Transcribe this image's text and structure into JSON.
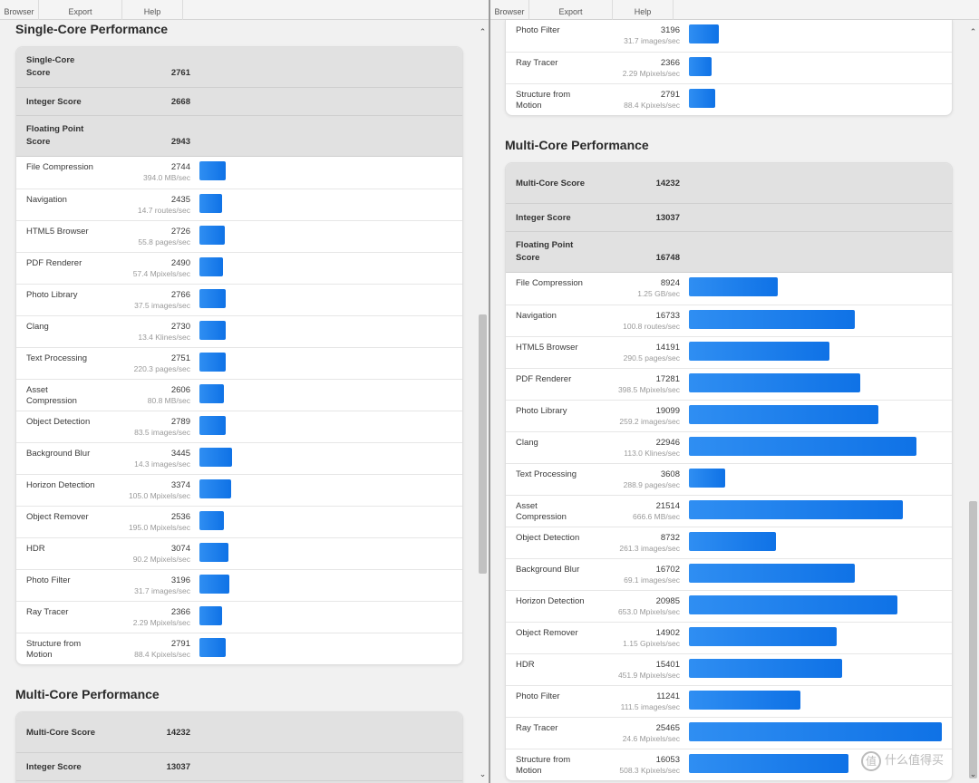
{
  "menu": [
    "Browser",
    "Export",
    "Help"
  ],
  "sections": {
    "single": "Single-Core Performance",
    "multi": "Multi-Core Performance"
  },
  "single_core": {
    "summary": [
      {
        "label": "Single-Core\nScore",
        "score": "2761"
      },
      {
        "label": "Integer Score",
        "score": "2668"
      },
      {
        "label": "Floating Point\nScore",
        "score": "2943"
      }
    ],
    "workloads": [
      {
        "name": "File Compression",
        "score": "2744",
        "unit": "394.0 MB/sec"
      },
      {
        "name": "Navigation",
        "score": "2435",
        "unit": "14.7 routes/sec"
      },
      {
        "name": "HTML5 Browser",
        "score": "2726",
        "unit": "55.8 pages/sec"
      },
      {
        "name": "PDF Renderer",
        "score": "2490",
        "unit": "57.4 Mpixels/sec"
      },
      {
        "name": "Photo Library",
        "score": "2766",
        "unit": "37.5 images/sec"
      },
      {
        "name": "Clang",
        "score": "2730",
        "unit": "13.4 Klines/sec"
      },
      {
        "name": "Text Processing",
        "score": "2751",
        "unit": "220.3 pages/sec"
      },
      {
        "name": "Asset\nCompression",
        "score": "2606",
        "unit": "80.8 MB/sec"
      },
      {
        "name": "Object Detection",
        "score": "2789",
        "unit": "83.5 images/sec"
      },
      {
        "name": "Background Blur",
        "score": "3445",
        "unit": "14.3 images/sec"
      },
      {
        "name": "Horizon Detection",
        "score": "3374",
        "unit": "105.0 Mpixels/sec"
      },
      {
        "name": "Object Remover",
        "score": "2536",
        "unit": "195.0 Mpixels/sec"
      },
      {
        "name": "HDR",
        "score": "3074",
        "unit": "90.2 Mpixels/sec"
      },
      {
        "name": "Photo Filter",
        "score": "3196",
        "unit": "31.7 images/sec"
      },
      {
        "name": "Ray Tracer",
        "score": "2366",
        "unit": "2.29 Mpixels/sec"
      },
      {
        "name": "Structure from\nMotion",
        "score": "2791",
        "unit": "88.4 Kpixels/sec"
      }
    ]
  },
  "multi_core": {
    "summary": [
      {
        "label": "Multi-Core Score",
        "score": "14232"
      },
      {
        "label": "Integer Score",
        "score": "13037"
      },
      {
        "label": "Floating Point\nScore",
        "score": "16748"
      }
    ],
    "workloads": [
      {
        "name": "File Compression",
        "score": "8924",
        "unit": "1.25 GB/sec"
      },
      {
        "name": "Navigation",
        "score": "16733",
        "unit": "100.8 routes/sec"
      },
      {
        "name": "HTML5 Browser",
        "score": "14191",
        "unit": "290.5 pages/sec"
      },
      {
        "name": "PDF Renderer",
        "score": "17281",
        "unit": "398.5 Mpixels/sec"
      },
      {
        "name": "Photo Library",
        "score": "19099",
        "unit": "259.2 images/sec"
      },
      {
        "name": "Clang",
        "score": "22946",
        "unit": "113.0 Klines/sec"
      },
      {
        "name": "Text Processing",
        "score": "3608",
        "unit": "288.9 pages/sec"
      },
      {
        "name": "Asset\nCompression",
        "score": "21514",
        "unit": "666.6 MB/sec"
      },
      {
        "name": "Object Detection",
        "score": "8732",
        "unit": "261.3 images/sec"
      },
      {
        "name": "Background Blur",
        "score": "16702",
        "unit": "69.1 images/sec"
      },
      {
        "name": "Horizon Detection",
        "score": "20985",
        "unit": "653.0 Mpixels/sec"
      },
      {
        "name": "Object Remover",
        "score": "14902",
        "unit": "1.15 Gpixels/sec"
      },
      {
        "name": "HDR",
        "score": "15401",
        "unit": "451.9 Mpixels/sec"
      },
      {
        "name": "Photo Filter",
        "score": "11241",
        "unit": "111.5 images/sec"
      },
      {
        "name": "Ray Tracer",
        "score": "25465",
        "unit": "24.6 Mpixels/sec"
      },
      {
        "name": "Structure from\nMotion",
        "score": "16053",
        "unit": "508.3 Kpixels/sec"
      }
    ]
  },
  "watermark": {
    "glyph": "值",
    "text": "什么值得买"
  }
}
